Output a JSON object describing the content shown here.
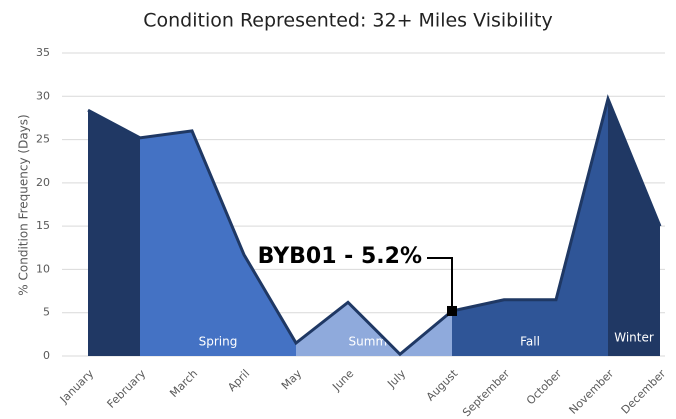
{
  "chart_data": {
    "type": "area",
    "title": "Condition Represented: 32+ Miles Visibility",
    "y_label": "% Condition Frequency (Days)",
    "categories": [
      "January",
      "February",
      "March",
      "April",
      "May",
      "June",
      "July",
      "August",
      "September",
      "October",
      "November",
      "December"
    ],
    "values": [
      28.4,
      25.2,
      26.0,
      11.7,
      1.5,
      6.2,
      0.2,
      5.2,
      6.5,
      6.5,
      29.7,
      15.0
    ],
    "line_color": "#1f3864",
    "season_bands": [
      {
        "color": "#203864",
        "from": "January",
        "to": "February"
      },
      {
        "name": "Spring",
        "color": "#4472c4",
        "from": "February",
        "to": "May"
      },
      {
        "name": "Summer",
        "color": "#8faadc",
        "from": "May",
        "to": "August"
      },
      {
        "name": "Fall",
        "color": "#2f5597",
        "from": "August",
        "to": "November"
      },
      {
        "name": "Winter",
        "color": "#203864",
        "from": "November",
        "to": "December"
      }
    ],
    "annotation": {
      "text": "BYB01 - 5.2%",
      "category": "August"
    },
    "ylim": [
      0,
      35
    ],
    "yticks": [
      0,
      5,
      10,
      15,
      20,
      25,
      30,
      35
    ],
    "grid": true
  }
}
